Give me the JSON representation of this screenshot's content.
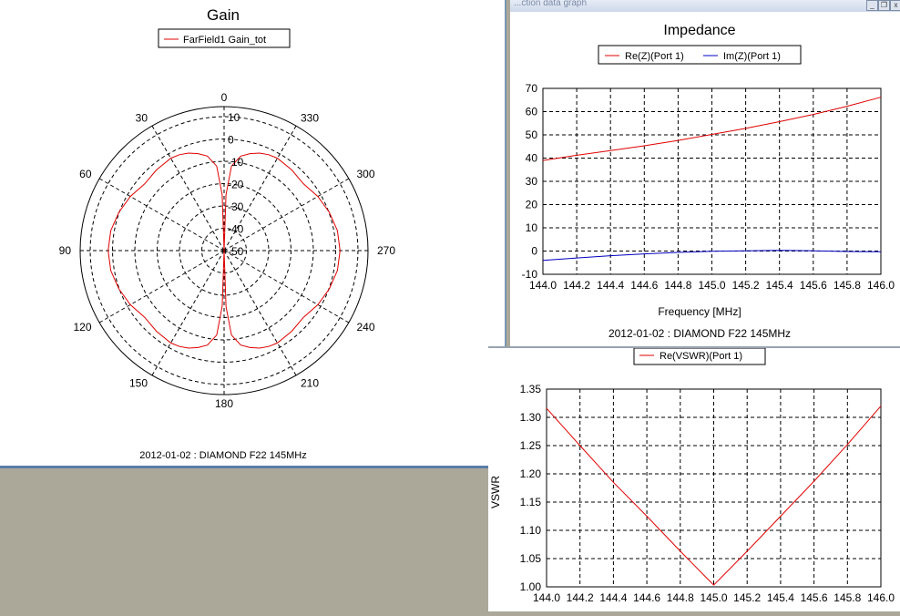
{
  "window": {
    "title_fragment": "...ction data graph",
    "buttons": [
      "_",
      "❐",
      "x"
    ]
  },
  "gain": {
    "title": "Gain",
    "legend": "FarField1 Gain_tot",
    "angle_labels": [
      "0",
      "30",
      "60",
      "90",
      "120",
      "150",
      "180",
      "210",
      "240",
      "270",
      "300",
      "330"
    ],
    "radial_labels": [
      "10",
      "0",
      "-10",
      "-20",
      "-30",
      "-40",
      "-50"
    ],
    "footer": "2012-01-02 : DIAMOND F22 145MHz",
    "colors": {
      "trace": "#e00000",
      "grid": "#000000"
    }
  },
  "impedance": {
    "title": "Impedance",
    "legend": [
      "Re(Z)(Port 1)",
      "Im(Z)(Port 1)"
    ],
    "xlabel": "Frequency [MHz]",
    "footer": "2012-01-02 : DIAMOND F22 145MHz",
    "x_ticks": [
      "144.0",
      "144.2",
      "144.4",
      "144.6",
      "144.8",
      "145.0",
      "145.2",
      "145.4",
      "145.6",
      "145.8",
      "146.0"
    ],
    "y_ticks": [
      "70",
      "60",
      "50",
      "40",
      "30",
      "20",
      "10",
      "0",
      "-10"
    ]
  },
  "vswr": {
    "legend": "Re(VSWR)(Port 1)",
    "ylabel": "VSWR",
    "x_ticks": [
      "144.0",
      "144.2",
      "144.4",
      "144.6",
      "144.8",
      "145.0",
      "145.2",
      "145.4",
      "145.6",
      "145.8",
      "146.0"
    ],
    "y_ticks": [
      "1.35",
      "1.30",
      "1.25",
      "1.20",
      "1.15",
      "1.10",
      "1.05",
      "1.00"
    ]
  },
  "chart_data": [
    {
      "type": "line",
      "polar": true,
      "title": "Gain",
      "series": [
        {
          "name": "FarField1 Gain_tot",
          "theta": [
            0,
            2,
            5,
            10,
            15,
            20,
            25,
            30,
            40,
            50,
            60,
            70,
            80,
            90,
            100,
            110,
            120,
            130,
            140,
            150,
            155,
            160,
            165,
            170,
            175,
            178,
            180
          ],
          "r_db": [
            -50,
            -25,
            -12,
            -7,
            -5,
            -3.5,
            -2.6,
            -2.2,
            -2.8,
            -3.5,
            -1.5,
            0.2,
            1.6,
            2.0,
            1.6,
            0.2,
            -1.5,
            -3.5,
            -2.8,
            -2.2,
            -2.6,
            -3.5,
            -5,
            -7,
            -12,
            -25,
            -50
          ],
          "symmetric_about": "0-180 axis"
        }
      ],
      "rlim": [
        -50,
        10
      ],
      "grid": true
    },
    {
      "type": "line",
      "title": "Impedance",
      "xlabel": "Frequency [MHz]",
      "x": [
        144.0,
        144.2,
        144.4,
        144.6,
        144.8,
        145.0,
        145.2,
        145.4,
        145.6,
        145.8,
        146.0
      ],
      "series": [
        {
          "name": "Re(Z)(Port 1)",
          "values": [
            39,
            41.2,
            43.2,
            45.3,
            47.6,
            50.2,
            52.8,
            55.7,
            58.8,
            62.3,
            66.2
          ]
        },
        {
          "name": "Im(Z)(Port 1)",
          "values": [
            -4,
            -3.0,
            -2.0,
            -1.2,
            -0.6,
            -0.1,
            0.1,
            0.3,
            0.1,
            -0.2,
            -0.3
          ]
        }
      ],
      "xlim": [
        144.0,
        146.0
      ],
      "ylim": [
        -10,
        70
      ],
      "grid": true,
      "legend": "top"
    },
    {
      "type": "line",
      "ylabel": "VSWR",
      "x": [
        144.0,
        144.2,
        144.4,
        144.6,
        144.8,
        145.0,
        145.2,
        145.4,
        145.6,
        145.8,
        146.0
      ],
      "series": [
        {
          "name": "Re(VSWR)(Port 1)",
          "values": [
            1.316,
            1.25,
            1.185,
            1.125,
            1.063,
            1.003,
            1.063,
            1.125,
            1.187,
            1.252,
            1.32
          ]
        }
      ],
      "xlim": [
        144.0,
        146.0
      ],
      "ylim": [
        1.0,
        1.35
      ],
      "grid": true,
      "legend": "top"
    }
  ]
}
